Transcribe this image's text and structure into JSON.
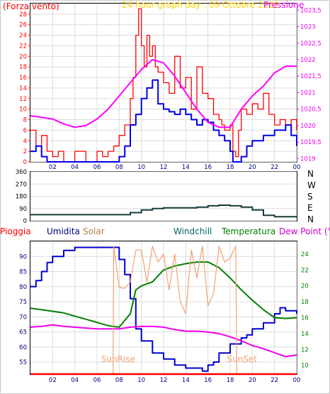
{
  "chart_data": [
    {
      "type": "line",
      "title": "24 hour graph day : 09 Ottobre 2022",
      "left_axis_label": "Forza vento",
      "right_axis_label": "Pressione",
      "x_ticks": [
        "02",
        "04",
        "06",
        "08",
        "10",
        "12",
        "14",
        "16",
        "18",
        "20",
        "22",
        "00"
      ],
      "y_left_ticks": [
        "0",
        "2",
        "4",
        "6",
        "8",
        "10",
        "12",
        "14",
        "16",
        "18",
        "20",
        "22",
        "24",
        "26",
        "28"
      ],
      "y_left_range": [
        0,
        30
      ],
      "y_right_ticks": [
        "1019",
        "1019,5",
        "1020",
        "1020,5",
        "1021",
        "1021,5",
        "1022",
        "1022,5",
        "1023",
        "1023,5"
      ],
      "y_right_range": [
        1018.9,
        1023.7
      ],
      "x_range": [
        0,
        24
      ],
      "series": [
        {
          "color": "#ff0000",
          "kind": "gust",
          "x": [
            0,
            0.5,
            1,
            1.5,
            2,
            2.5,
            3,
            4,
            5,
            6,
            6.5,
            7,
            7.5,
            8,
            8.5,
            9,
            9.25,
            9.5,
            9.75,
            10,
            10.25,
            10.5,
            10.75,
            11,
            11.25,
            11.5,
            12,
            12.5,
            13,
            13.5,
            14,
            14.5,
            15,
            15.5,
            16,
            16.5,
            17,
            17.25,
            17.5,
            18,
            18.25,
            18.5,
            18.75,
            19,
            19.5,
            20,
            20.5,
            21,
            21.5,
            22,
            22.5,
            23,
            23.5,
            24
          ],
          "y": [
            6,
            3,
            5,
            2,
            1,
            2,
            0,
            2,
            0,
            2,
            1,
            2,
            3,
            5,
            7,
            12,
            16,
            24,
            29,
            22,
            18,
            24,
            20,
            22,
            18,
            17,
            15,
            13,
            20,
            14,
            16,
            10,
            18,
            13,
            12,
            9,
            8,
            7,
            6,
            7,
            2,
            1,
            6,
            10,
            9,
            11,
            10,
            13,
            9,
            7,
            8,
            7,
            8,
            6
          ]
        },
        {
          "color": "#0000e6",
          "kind": "average",
          "x": [
            0,
            0.5,
            1,
            1.5,
            2,
            2.5,
            3,
            4,
            5,
            6,
            6.5,
            7,
            7.5,
            8,
            8.5,
            9,
            9.5,
            10,
            10.5,
            11,
            11.5,
            12,
            12.5,
            13,
            13.5,
            14,
            14.5,
            15,
            15.5,
            16,
            16.5,
            17,
            17.5,
            18,
            18.25,
            18.5,
            19,
            19.5,
            20,
            20.5,
            21,
            21.5,
            22,
            22.5,
            23,
            23.5,
            24
          ],
          "y": [
            2,
            3,
            1,
            0,
            0,
            0,
            0,
            0,
            0,
            0,
            0,
            0,
            0,
            1,
            3,
            7,
            9,
            12,
            14,
            15.5,
            11,
            10,
            9.5,
            9,
            10,
            9,
            8,
            7,
            8,
            7.5,
            6,
            5,
            4,
            2,
            0,
            0,
            1,
            3,
            4,
            4,
            5,
            5,
            6,
            6,
            7,
            5,
            3
          ]
        },
        {
          "color": "#ff00ff",
          "kind": "pressure",
          "x": [
            0,
            1,
            2,
            3,
            4,
            5,
            6,
            7,
            8,
            9,
            10,
            11,
            12,
            13,
            14,
            15,
            16,
            17,
            18,
            19,
            20,
            21,
            22,
            23,
            24
          ],
          "y": [
            1020.3,
            1020.25,
            1020.2,
            1020.05,
            1019.95,
            1020.0,
            1020.2,
            1020.5,
            1020.9,
            1021.3,
            1021.7,
            1022.0,
            1021.9,
            1021.5,
            1021.0,
            1020.5,
            1020.1,
            1019.95,
            1019.95,
            1020.5,
            1020.9,
            1021.2,
            1021.6,
            1021.8,
            1021.8
          ]
        }
      ]
    },
    {
      "type": "line",
      "y_ticks": [
        "0",
        "90",
        "180",
        "270",
        "360"
      ],
      "y_range": [
        0,
        360
      ],
      "direction_labels": [
        "N",
        "W",
        "S",
        "E",
        "N"
      ],
      "series": [
        {
          "color": "#1a3d3d",
          "kind": "wind direction",
          "x": [
            0,
            1,
            2,
            3,
            4,
            5,
            6,
            7,
            8,
            9,
            10,
            11,
            12,
            13,
            14,
            15,
            16,
            17,
            18,
            19,
            20,
            21,
            22,
            23,
            24
          ],
          "y": [
            45,
            45,
            45,
            45,
            45,
            45,
            45,
            45,
            45,
            60,
            80,
            90,
            95,
            95,
            95,
            100,
            110,
            115,
            110,
            100,
            80,
            40,
            30,
            30,
            30
          ]
        }
      ]
    },
    {
      "type": "line",
      "legend": [
        "Pioggia",
        "Umidita",
        "Solar",
        "Windchill",
        "Temperatura",
        "Dew Point (°C)"
      ],
      "legend_colors": [
        "#ff0000",
        "#000080",
        "#b08040",
        "#006464",
        "#008000",
        "#cc00cc"
      ],
      "y_left_ticks": [
        "55",
        "60",
        "65",
        "70",
        "75",
        "80",
        "85",
        "90"
      ],
      "y_left_range": [
        51,
        95
      ],
      "y_right_ticks": [
        "10",
        "12",
        "14",
        "16",
        "18",
        "20",
        "22",
        "24"
      ],
      "y_right_range": [
        8.9,
        25.6
      ],
      "annotations": [
        "SunRise",
        "SunSet"
      ],
      "sunrise_x": 7.45,
      "sunset_x": 18.6,
      "series": [
        {
          "name": "Umidita",
          "color": "#0000cc",
          "axis": "left",
          "x": [
            0,
            0.5,
            1,
            1.5,
            2,
            3,
            4,
            5,
            6,
            7,
            7.5,
            8,
            8.5,
            9,
            9.5,
            10,
            11,
            12,
            13,
            14,
            15,
            15.5,
            16,
            16.5,
            17,
            18,
            19,
            19.5,
            20,
            21,
            22,
            22.5,
            23,
            24
          ],
          "y": [
            80,
            82,
            85,
            88,
            90,
            92,
            93,
            93,
            93,
            93,
            93,
            89,
            84,
            76,
            66,
            62,
            58,
            56,
            54,
            53,
            53,
            52,
            54,
            55,
            58,
            61,
            63,
            64,
            66,
            68,
            71,
            73,
            72,
            71
          ]
        },
        {
          "name": "Temperatura",
          "color": "#008000",
          "axis": "right",
          "x": [
            0,
            1,
            2,
            3,
            4,
            5,
            6,
            7,
            8,
            9,
            9.5,
            10,
            11,
            12,
            13,
            14,
            15,
            16,
            17,
            18,
            19,
            20,
            21,
            22,
            23,
            24
          ],
          "y": [
            17.2,
            17.0,
            16.8,
            16.6,
            16.2,
            15.8,
            15.4,
            15.0,
            14.8,
            16.5,
            19.5,
            20.0,
            20.5,
            22.0,
            22.5,
            22.8,
            23.0,
            23.0,
            22.3,
            21.0,
            19.5,
            18.2,
            17.0,
            16.0,
            15.9,
            16.0
          ]
        },
        {
          "name": "Dew Point (°C)",
          "color": "#ee00ee",
          "axis": "right",
          "x": [
            0,
            1,
            2,
            3,
            4,
            5,
            6,
            7,
            8,
            9,
            10,
            11,
            12,
            13,
            14,
            15,
            16,
            17,
            18,
            19,
            20,
            21,
            22,
            23,
            24
          ],
          "y": [
            14.8,
            14.9,
            15.1,
            14.9,
            14.8,
            14.7,
            14.6,
            14.6,
            14.6,
            14.8,
            14.9,
            14.9,
            14.8,
            14.5,
            14.3,
            14.3,
            14.2,
            14.0,
            13.6,
            13.1,
            12.5,
            12.1,
            11.6,
            11.1,
            11.3
          ]
        },
        {
          "name": "Solar",
          "color": "#f4a070",
          "axis": "right",
          "x": [
            7.45,
            7.5,
            8,
            8.5,
            9,
            9.5,
            10,
            10.5,
            11,
            11.5,
            12,
            12.5,
            13,
            13.5,
            14,
            14.5,
            15,
            15.5,
            16,
            16.5,
            17,
            17.5,
            18,
            18.5,
            18.6
          ],
          "y": [
            9.0,
            25.0,
            19.8,
            19.7,
            20.5,
            24.5,
            24.5,
            20.5,
            25.0,
            23.0,
            24.0,
            19.5,
            24.0,
            18.0,
            16.5,
            24.5,
            21.0,
            25.0,
            17.5,
            19.0,
            25.0,
            23.0,
            23.5,
            25.0,
            9.0
          ]
        },
        {
          "name": "Pioggia",
          "color": "#ff0000",
          "axis": "left",
          "x": [
            0,
            24
          ],
          "y": [
            51,
            51
          ]
        }
      ]
    }
  ]
}
